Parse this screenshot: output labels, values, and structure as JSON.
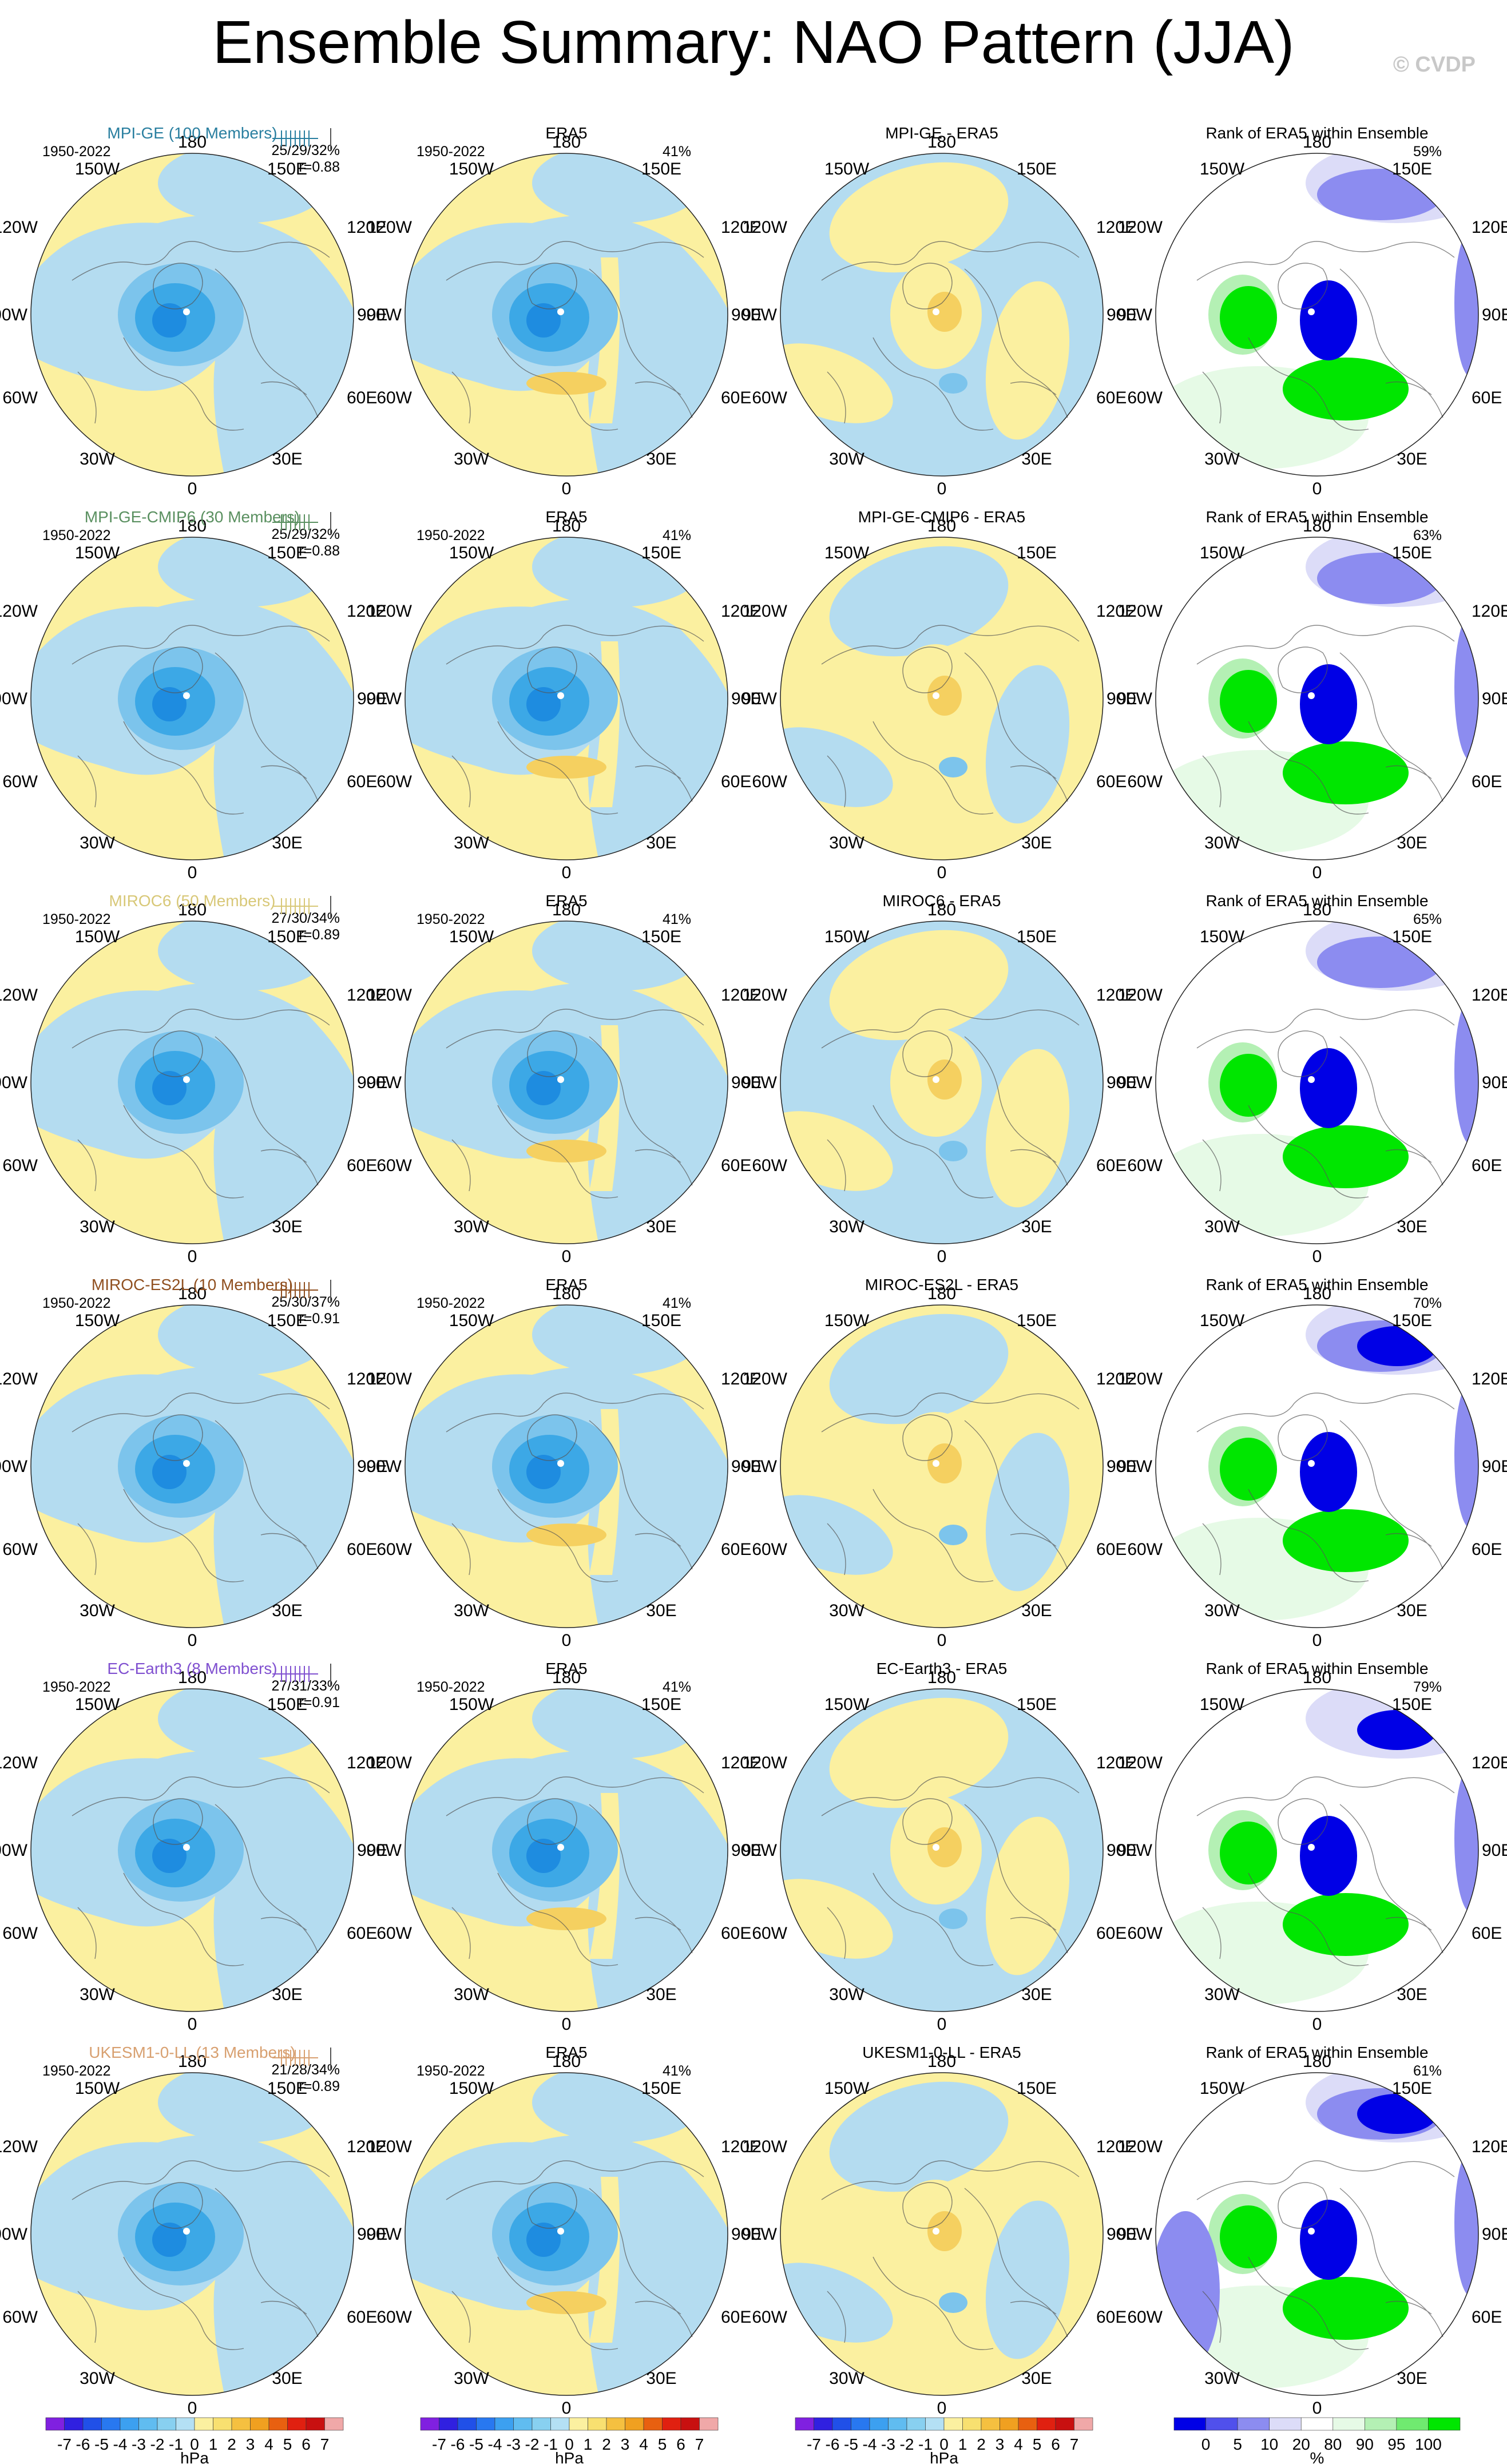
{
  "title": "Ensemble Summary: NAO Pattern (JJA)",
  "watermark": "© CVDP",
  "period": "1950-2022",
  "era5_label": "ERA5",
  "era5_pct": "41%",
  "rank_title": "Rank of ERA5 within Ensemble",
  "meridian_labels": {
    "top": "180",
    "bottom": "0",
    "left_top": "150W",
    "right_top": "150E",
    "left_upper": "120W",
    "right_upper": "120E",
    "left_mid": "90W",
    "right_mid": "90E",
    "left_lower": "60W",
    "right_lower": "60E",
    "left_bottom": "30W",
    "right_bottom": "30E"
  },
  "colors": {
    "neg1": "#b4dcf0",
    "neg2": "#7cc4ec",
    "neg3": "#3ca8e6",
    "neg4": "#1e8ce0",
    "pos1": "#fbf0a0",
    "pos2": "#f5d060",
    "pos3": "#f0b020",
    "rank_blue": "#0000e6",
    "rank_lightblue": "#8c8cf0",
    "rank_paleblue": "#dcdcf8",
    "rank_green": "#00e600",
    "rank_lightgreen": "#b4f0b4",
    "rank_palegreen": "#e6fae6"
  },
  "models": [
    {
      "name": "MPI-GE (100 Members)",
      "color": "#2a7fa0",
      "stats": "25/29/32%",
      "r": "r=0.88",
      "diff_title": "MPI-GE - ERA5",
      "rank_pct": "59%"
    },
    {
      "name": "MPI-GE-CMIP6 (30 Members)",
      "color": "#5a9060",
      "stats": "25/29/32%",
      "r": "r=0.88",
      "diff_title": "MPI-GE-CMIP6 - ERA5",
      "rank_pct": "63%"
    },
    {
      "name": "MIROC6 (50 Members)",
      "color": "#d8c878",
      "stats": "27/30/34%",
      "r": "r=0.89",
      "diff_title": "MIROC6 - ERA5",
      "rank_pct": "65%"
    },
    {
      "name": "MIROC-ES2L (10 Members)",
      "color": "#905020",
      "stats": "25/30/37%",
      "r": "r=0.91",
      "diff_title": "MIROC-ES2L - ERA5",
      "rank_pct": "70%"
    },
    {
      "name": "EC-Earth3 (8 Members)",
      "color": "#8050d0",
      "stats": "27/31/33%",
      "r": "r=0.91",
      "diff_title": "EC-Earth3 - ERA5",
      "rank_pct": "79%"
    },
    {
      "name": "UKESM1-0-LL (13 Members)",
      "color": "#d8a070",
      "stats": "21/28/34%",
      "r": "r=0.89",
      "diff_title": "UKESM1-0-LL - ERA5",
      "rank_pct": "61%"
    }
  ],
  "colorbar": {
    "labels": [
      "-7",
      "-6",
      "-5",
      "-4",
      "-3",
      "-2",
      "-1",
      "0",
      "1",
      "2",
      "3",
      "4",
      "5",
      "6",
      "7"
    ],
    "colors": [
      "#8020e0",
      "#3020e0",
      "#2050e8",
      "#2878f0",
      "#3ca0f0",
      "#60bcf0",
      "#88d0f0",
      "#b4e0f4",
      "#fbf0a0",
      "#f8e070",
      "#f5c040",
      "#f0a020",
      "#e86010",
      "#e02010",
      "#c81010",
      "#f0a8a8"
    ],
    "unit": "hPa"
  },
  "rank_colorbar": {
    "labels": [
      "0",
      "5",
      "10",
      "20",
      "80",
      "90",
      "95",
      "100"
    ],
    "colors": [
      "#0000e6",
      "#5050ec",
      "#8c8cf0",
      "#dcdcf8",
      "#ffffff",
      "#e6fae6",
      "#b4f0b4",
      "#70ea70",
      "#00e600"
    ],
    "unit": "%"
  },
  "chart_data": {
    "type": "heatmap",
    "title": "Ensemble Summary: NAO Pattern (JJA)",
    "period": "1950-2022",
    "observations": "ERA5",
    "era5_variance_explained": "41%",
    "units": "hPa",
    "contour_levels": [
      -7,
      -6,
      -5,
      -4,
      -3,
      -2,
      -1,
      0,
      1,
      2,
      3,
      4,
      5,
      6,
      7
    ],
    "rank_levels": [
      0,
      5,
      10,
      20,
      80,
      90,
      95,
      100
    ],
    "models": [
      {
        "model": "MPI-GE",
        "members": 100,
        "pct_explained_min_mean_max": [
          25,
          29,
          32
        ],
        "pattern_correlation": 0.88,
        "rank_pct": 59
      },
      {
        "model": "MPI-GE-CMIP6",
        "members": 30,
        "pct_explained_min_mean_max": [
          25,
          29,
          32
        ],
        "pattern_correlation": 0.88,
        "rank_pct": 63
      },
      {
        "model": "MIROC6",
        "members": 50,
        "pct_explained_min_mean_max": [
          27,
          30,
          34
        ],
        "pattern_correlation": 0.89,
        "rank_pct": 65
      },
      {
        "model": "MIROC-ES2L",
        "members": 10,
        "pct_explained_min_mean_max": [
          25,
          30,
          37
        ],
        "pattern_correlation": 0.91,
        "rank_pct": 70
      },
      {
        "model": "EC-Earth3",
        "members": 8,
        "pct_explained_min_mean_max": [
          27,
          31,
          33
        ],
        "pattern_correlation": 0.91,
        "rank_pct": 79
      },
      {
        "model": "UKESM1-0-LL",
        "members": 13,
        "pct_explained_min_mean_max": [
          21,
          28,
          34
        ],
        "pattern_correlation": 0.89,
        "rank_pct": 61
      }
    ]
  }
}
